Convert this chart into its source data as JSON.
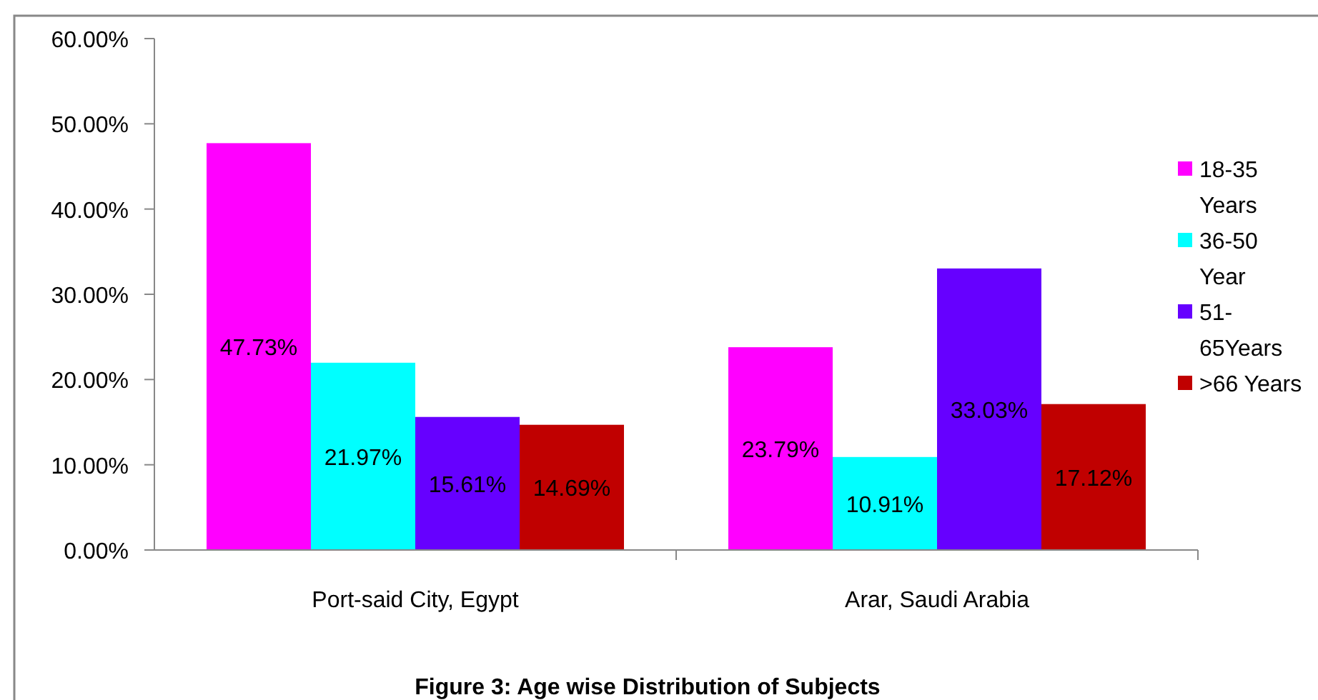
{
  "chart_data": {
    "type": "bar",
    "title": "Figure 3: Age wise Distribution of Subjects",
    "categories": [
      "Port-said City, Egypt",
      "Arar, Saudi Arabia"
    ],
    "series": [
      {
        "name": "18-35 Years",
        "color": "#ff00ff",
        "values": [
          47.73,
          23.79
        ],
        "value_labels": [
          "47.73%",
          "23.79%"
        ]
      },
      {
        "name": "36-50 Year",
        "color": "#00ffff",
        "values": [
          21.97,
          10.91
        ],
        "value_labels": [
          "21.97%",
          "10.91%"
        ]
      },
      {
        "name": "51-65Years",
        "color": "#6600ff",
        "values": [
          15.61,
          33.03
        ],
        "value_labels": [
          "15.61%",
          "33.03%"
        ]
      },
      {
        "name": ">66 Years",
        "color": "#c00000",
        "values": [
          14.69,
          17.12
        ],
        "value_labels": [
          "14.69%",
          "17.12%"
        ]
      }
    ],
    "ylim": [
      0,
      60
    ],
    "yticks": [
      {
        "value": 0,
        "label": "0.00%"
      },
      {
        "value": 10,
        "label": "10.00%"
      },
      {
        "value": 20,
        "label": "20.00%"
      },
      {
        "value": 30,
        "label": "30.00%"
      },
      {
        "value": 40,
        "label": "40.00%"
      },
      {
        "value": 50,
        "label": "50.00%"
      },
      {
        "value": 60,
        "label": "60.00%"
      }
    ],
    "grid": false,
    "legend": "right"
  }
}
